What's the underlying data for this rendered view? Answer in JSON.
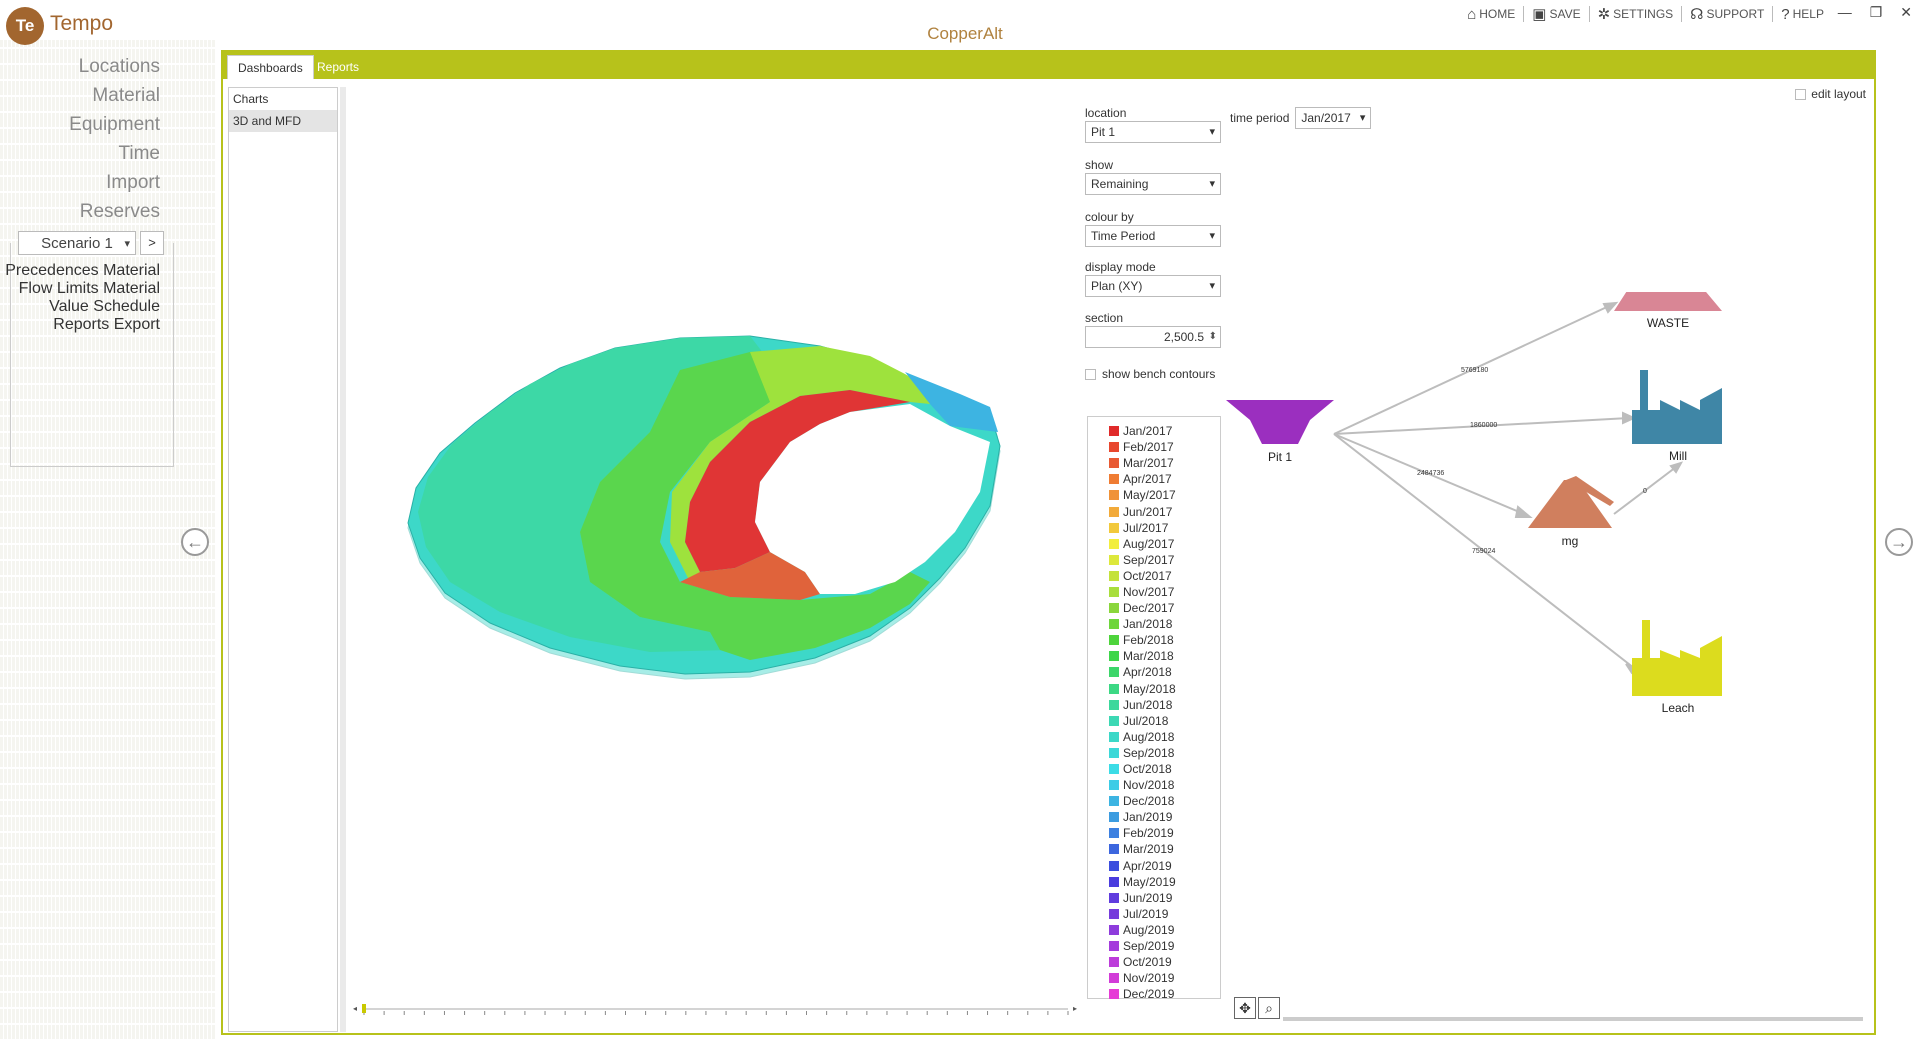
{
  "app": {
    "logo_initials": "Te",
    "logo_name": "Tempo",
    "title": "CopperAlt"
  },
  "topnav": [
    {
      "icon": "home-icon",
      "glyph": "⌂",
      "label": "HOME"
    },
    {
      "icon": "save-icon",
      "glyph": "▣",
      "label": "SAVE"
    },
    {
      "icon": "gear-icon",
      "glyph": "✲",
      "label": "SETTINGS"
    },
    {
      "icon": "headset-icon",
      "glyph": "☊",
      "label": "SUPPORT"
    },
    {
      "icon": "help-icon",
      "glyph": "?",
      "label": "HELP"
    }
  ],
  "window_controls": {
    "minimize": "—",
    "restore": "❐",
    "close": "✕"
  },
  "sidebar": {
    "items_top": [
      "Locations",
      "Material",
      "Equipment",
      "Time",
      "Import",
      "Reserves"
    ],
    "scenario": {
      "value": "Scenario 1",
      "next_label": ">"
    },
    "items_scenario": [
      "Precedences",
      "Material Flow",
      "Limits",
      "Material Value",
      "Schedule",
      "Reports",
      "Export"
    ],
    "active": "Reports"
  },
  "tabs": [
    {
      "label": "Dashboards",
      "active": true
    },
    {
      "label": "Reports",
      "active": false
    }
  ],
  "chart_list": [
    {
      "label": "Charts",
      "selected": false
    },
    {
      "label": "3D and MFD",
      "selected": true
    }
  ],
  "edit_layout_label": "edit layout",
  "controls": {
    "location": {
      "label": "location",
      "value": "Pit 1"
    },
    "show": {
      "label": "show",
      "value": "Remaining"
    },
    "colour_by": {
      "label": "colour by",
      "value": "Time Period"
    },
    "display_mode": {
      "label": "display mode",
      "value": "Plan (XY)"
    },
    "section": {
      "label": "section",
      "value": "2,500.5"
    },
    "time_period": {
      "label": "time period",
      "value": "Jan/2017"
    },
    "bench_label": "show bench contours"
  },
  "legend": [
    {
      "label": "Jan/2017",
      "color": "#e02a2a"
    },
    {
      "label": "Feb/2017",
      "color": "#e8472e"
    },
    {
      "label": "Mar/2017",
      "color": "#e85a34"
    },
    {
      "label": "Apr/2017",
      "color": "#ef7c33"
    },
    {
      "label": "May/2017",
      "color": "#f09238"
    },
    {
      "label": "Jun/2017",
      "color": "#f2aa3a"
    },
    {
      "label": "Jul/2017",
      "color": "#f2c93c"
    },
    {
      "label": "Aug/2017",
      "color": "#f2ee3e"
    },
    {
      "label": "Sep/2017",
      "color": "#dde83c"
    },
    {
      "label": "Oct/2017",
      "color": "#c4e23c"
    },
    {
      "label": "Nov/2017",
      "color": "#a8de3c"
    },
    {
      "label": "Dec/2017",
      "color": "#8ad63c"
    },
    {
      "label": "Jan/2018",
      "color": "#6ed63c"
    },
    {
      "label": "Feb/2018",
      "color": "#4ed43c"
    },
    {
      "label": "Mar/2018",
      "color": "#3ed64a"
    },
    {
      "label": "Apr/2018",
      "color": "#3cd66a"
    },
    {
      "label": "May/2018",
      "color": "#3cd884"
    },
    {
      "label": "Jun/2018",
      "color": "#3cd89c"
    },
    {
      "label": "Jul/2018",
      "color": "#3cd8b4"
    },
    {
      "label": "Aug/2018",
      "color": "#3cd8c8"
    },
    {
      "label": "Sep/2018",
      "color": "#3cd8d8"
    },
    {
      "label": "Oct/2018",
      "color": "#3cdce6"
    },
    {
      "label": "Nov/2018",
      "color": "#3ccce6"
    },
    {
      "label": "Dec/2018",
      "color": "#3cb4e2"
    },
    {
      "label": "Jan/2019",
      "color": "#3c9ce0"
    },
    {
      "label": "Feb/2019",
      "color": "#3c80e0"
    },
    {
      "label": "Mar/2019",
      "color": "#3c66de"
    },
    {
      "label": "Apr/2019",
      "color": "#3c4ede"
    },
    {
      "label": "May/2019",
      "color": "#4a3cde"
    },
    {
      "label": "Jun/2019",
      "color": "#603cde"
    },
    {
      "label": "Jul/2019",
      "color": "#763cdc"
    },
    {
      "label": "Aug/2019",
      "color": "#8e3cdc"
    },
    {
      "label": "Sep/2019",
      "color": "#a43cdc"
    },
    {
      "label": "Oct/2019",
      "color": "#bc3cda"
    },
    {
      "label": "Nov/2019",
      "color": "#d23cd8"
    },
    {
      "label": "Dec/2019",
      "color": "#e63cd6"
    }
  ],
  "mfd": {
    "source": {
      "label": "Pit 1",
      "color": "#9b2fbf"
    },
    "destinations": [
      {
        "label": "WASTE",
        "color": "#d98695"
      },
      {
        "label": "Mill",
        "color": "#3f86a6"
      },
      {
        "label": "mg",
        "color": "#d07f5e"
      },
      {
        "label": "Leach",
        "color": "#dcdc1e"
      }
    ],
    "flows": [
      "5769180",
      "1860000",
      "2484736",
      "759024",
      "0"
    ]
  },
  "tools": {
    "pan": "✥",
    "zoom": "⌕"
  }
}
